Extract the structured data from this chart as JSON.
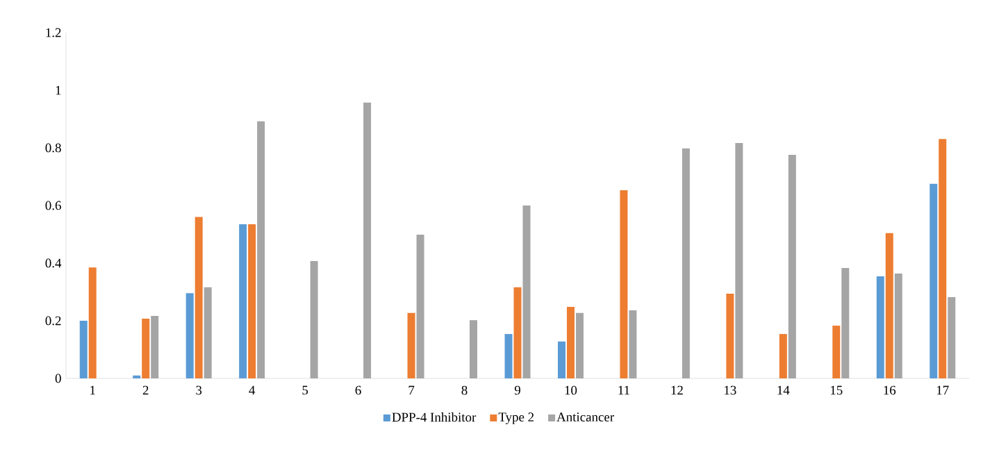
{
  "chart_data": {
    "type": "bar",
    "categories": [
      "1",
      "2",
      "3",
      "4",
      "5",
      "6",
      "7",
      "8",
      "9",
      "10",
      "11",
      "12",
      "13",
      "14",
      "15",
      "16",
      "17"
    ],
    "series": [
      {
        "name": "DPP-4 Inhibitor",
        "color": "#5b9bd5",
        "values": [
          0.2,
          0.01,
          0.296,
          0.535,
          null,
          null,
          null,
          null,
          0.154,
          0.128,
          null,
          null,
          null,
          null,
          null,
          0.354,
          0.675
        ]
      },
      {
        "name": "Type 2",
        "color": "#ed7d31",
        "values": [
          0.385,
          0.207,
          0.56,
          0.535,
          null,
          null,
          0.227,
          null,
          0.316,
          0.248,
          0.653,
          null,
          0.294,
          0.154,
          0.183,
          0.504,
          0.831
        ]
      },
      {
        "name": "Anticancer",
        "color": "#a5a5a5",
        "values": [
          null,
          0.217,
          0.316,
          0.892,
          0.407,
          0.957,
          0.499,
          0.202,
          0.6,
          0.227,
          0.236,
          0.798,
          0.817,
          0.776,
          0.383,
          0.364,
          0.282
        ]
      }
    ],
    "ylim": [
      0,
      1.2
    ],
    "yticks": [
      0,
      0.2,
      0.4,
      0.6,
      0.8,
      1,
      1.2
    ],
    "legend": "bottom"
  }
}
